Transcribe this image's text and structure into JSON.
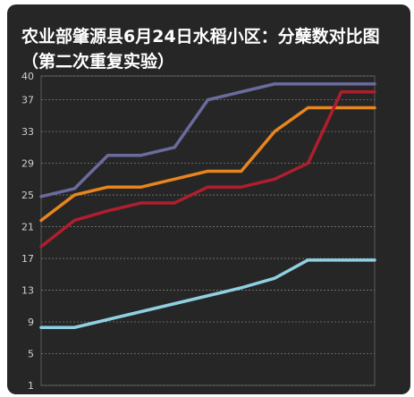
{
  "chart_data": {
    "type": "line",
    "title": "农业部肇源县6月24日水稻小区：分蘖数对比图（第二次重复实验）",
    "xlabel": "",
    "ylabel": "",
    "ylim": [
      1,
      40
    ],
    "yticks": [
      1,
      5,
      9,
      13,
      17,
      21,
      25,
      29,
      33,
      37,
      40
    ],
    "grid": true,
    "x": [
      1,
      2,
      3,
      4,
      5,
      6,
      7,
      8,
      9,
      10,
      11
    ],
    "series": [
      {
        "color": "#6b6b9e",
        "values": [
          24.8,
          25.8,
          30,
          30,
          31,
          37,
          38,
          39,
          39,
          39,
          39
        ]
      },
      {
        "color": "#e8851e",
        "values": [
          21.8,
          25,
          26,
          26,
          27,
          28,
          28,
          33,
          36,
          36,
          36
        ]
      },
      {
        "color": "#b01e2e",
        "values": [
          18.5,
          21.8,
          23,
          24,
          24,
          26,
          26,
          27,
          29,
          38,
          38
        ]
      },
      {
        "color": "#8fd0e3",
        "values": [
          8.3,
          8.3,
          9.3,
          10.3,
          11.3,
          12.3,
          13.3,
          14.5,
          16.8,
          16.8,
          16.8
        ]
      }
    ]
  }
}
